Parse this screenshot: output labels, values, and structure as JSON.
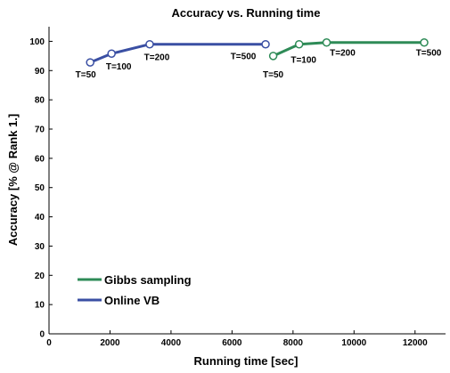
{
  "chart_data": {
    "type": "line",
    "title": "Accuracy vs. Running time",
    "xlabel": "Running time [sec]",
    "ylabel": "Accuracy [% @ Rank 1.]",
    "xlim": [
      0,
      13000
    ],
    "ylim": [
      0,
      105
    ],
    "xticks": [
      0,
      2000,
      4000,
      6000,
      8000,
      10000,
      12000
    ],
    "yticks": [
      0,
      10,
      20,
      30,
      40,
      50,
      60,
      70,
      80,
      90,
      100
    ],
    "grid": false,
    "legend_position": "bottom-left",
    "series": [
      {
        "name": "Gibbs sampling",
        "color": "#2e8b57",
        "points": [
          {
            "x": 7350,
            "y": 95,
            "label": "T=50"
          },
          {
            "x": 8200,
            "y": 99,
            "label": "T=100"
          },
          {
            "x": 9100,
            "y": 99.6,
            "label": "T=200"
          },
          {
            "x": 12300,
            "y": 99.6,
            "label": "T=500"
          }
        ]
      },
      {
        "name": "Online VB",
        "color": "#3a4fa3",
        "points": [
          {
            "x": 1350,
            "y": 92.8,
            "label": "T=50"
          },
          {
            "x": 2050,
            "y": 95.8,
            "label": "T=100"
          },
          {
            "x": 3300,
            "y": 99,
            "label": "T=200"
          },
          {
            "x": 7100,
            "y": 99,
            "label": "T=500"
          }
        ]
      }
    ]
  }
}
